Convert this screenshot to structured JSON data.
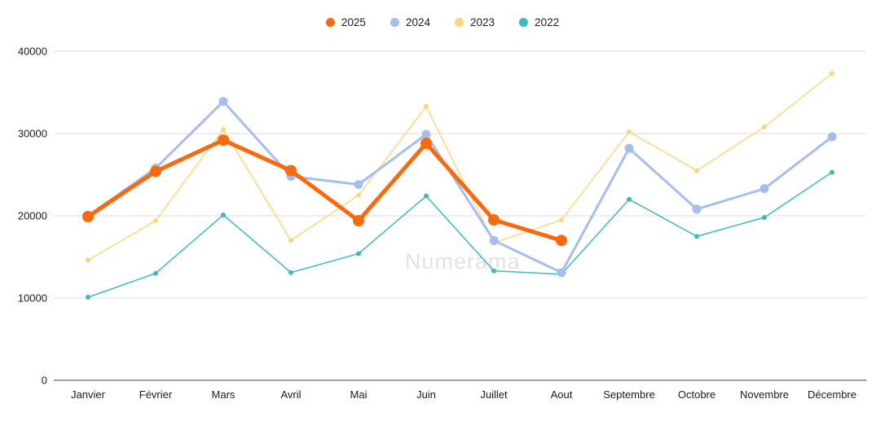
{
  "watermark": "Numerama",
  "chart_data": {
    "type": "line",
    "x": [
      "Janvier",
      "Février",
      "Mars",
      "Avril",
      "Mai",
      "Juin",
      "Juillet",
      "Aout",
      "Septembre",
      "Octobre",
      "Novembre",
      "Décembre"
    ],
    "series": [
      {
        "name": "2025",
        "color": "#F9690E",
        "line_width": 5,
        "point_radius": 7,
        "values": [
          19900,
          25400,
          29200,
          25500,
          19400,
          28800,
          19500,
          17000,
          null,
          null,
          null,
          null
        ]
      },
      {
        "name": "2024",
        "color": "#A4BEF0",
        "line_width": 3,
        "point_radius": 5.5,
        "values": [
          20000,
          25800,
          33900,
          24800,
          23800,
          29900,
          17000,
          13100,
          28200,
          20800,
          23300,
          29600
        ]
      },
      {
        "name": "2023",
        "color": "#FBD77C",
        "line_width": 1.5,
        "point_radius": 3,
        "values": [
          14600,
          19400,
          30500,
          17000,
          22500,
          33300,
          16700,
          19500,
          30200,
          25500,
          30800,
          37300
        ]
      },
      {
        "name": "2022",
        "color": "#3FB8C0",
        "line_width": 1.5,
        "point_radius": 3,
        "values": [
          10100,
          13000,
          20100,
          13100,
          15400,
          22400,
          13300,
          12900,
          22000,
          17500,
          19800,
          25300
        ]
      }
    ],
    "ylim": [
      0,
      40000
    ],
    "yticks": [
      0,
      10000,
      20000,
      30000,
      40000
    ],
    "ytick_labels": [
      "0",
      "10000",
      "20000",
      "30000",
      "40000"
    ],
    "grid": true,
    "legend_position": "top-center",
    "colors": {
      "grid_line": "#DDDDDD",
      "zero_axis_line": "#424242",
      "tick_text": "#1b1b1b",
      "watermark": "#E2E2E2"
    }
  }
}
